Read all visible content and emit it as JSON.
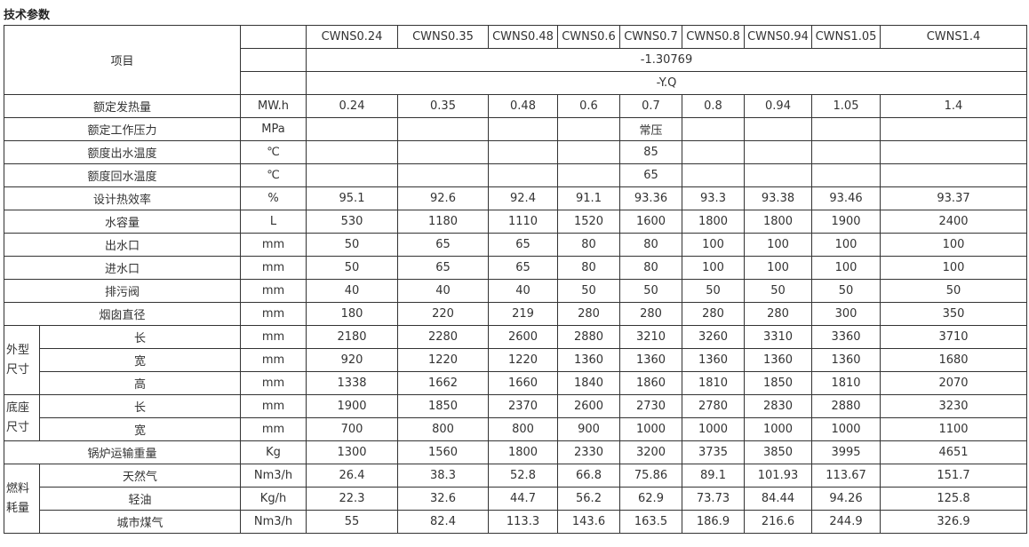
{
  "title": "技术参数",
  "header": {
    "item_label": "项目",
    "models": [
      "CWNS0.24",
      "CWNS0.35",
      "CWNS0.48",
      "CWNS0.6",
      "CWNS0.7",
      "CWNS0.8",
      "CWNS0.94",
      "CWNS1.05",
      "CWNS1.4"
    ],
    "model_suffix": "-1.30769",
    "fuel_suffix": "-Y.Q"
  },
  "rows": [
    {
      "label": "额定发热量",
      "unit": "MW.h",
      "values": [
        "0.24",
        "0.35",
        "0.48",
        "0.6",
        "0.7",
        "0.8",
        "0.94",
        "1.05",
        "1.4"
      ]
    },
    {
      "label": "额定工作压力",
      "unit": "MPa",
      "values": [
        "",
        "",
        "",
        "",
        "常压",
        "",
        "",
        "",
        ""
      ]
    },
    {
      "label": "额度出水温度",
      "unit": "℃",
      "values": [
        "",
        "",
        "",
        "",
        "85",
        "",
        "",
        "",
        ""
      ]
    },
    {
      "label": "额度回水温度",
      "unit": "℃",
      "values": [
        "",
        "",
        "",
        "",
        "65",
        "",
        "",
        "",
        ""
      ]
    },
    {
      "label": "设计热效率",
      "unit": "%",
      "values": [
        "95.1",
        "92.6",
        "92.4",
        "91.1",
        "93.36",
        "93.3",
        "93.38",
        "93.46",
        "93.37"
      ]
    },
    {
      "label": "水容量",
      "unit": "L",
      "values": [
        "530",
        "1180",
        "1110",
        "1520",
        "1600",
        "1800",
        "1800",
        "1900",
        "2400"
      ]
    },
    {
      "label": "出水口",
      "unit": "mm",
      "values": [
        "50",
        "65",
        "65",
        "80",
        "80",
        "100",
        "100",
        "100",
        "100"
      ]
    },
    {
      "label": "进水口",
      "unit": "mm",
      "values": [
        "50",
        "65",
        "65",
        "80",
        "80",
        "100",
        "100",
        "100",
        "100"
      ]
    },
    {
      "label": "排污阀",
      "unit": "mm",
      "values": [
        "40",
        "40",
        "40",
        "50",
        "50",
        "50",
        "50",
        "50",
        "50"
      ]
    },
    {
      "label": "烟囱直径",
      "unit": "mm",
      "values": [
        "180",
        "220",
        "219",
        "280",
        "280",
        "280",
        "280",
        "300",
        "350"
      ]
    },
    {
      "group": "外型尺寸",
      "group_span": 3,
      "label": "长",
      "unit": "mm",
      "values": [
        "2180",
        "2280",
        "2600",
        "2880",
        "3210",
        "3260",
        "3310",
        "3360",
        "3710"
      ]
    },
    {
      "label": "宽",
      "unit": "mm",
      "sub": true,
      "values": [
        "920",
        "1220",
        "1220",
        "1360",
        "1360",
        "1360",
        "1360",
        "1360",
        "1680"
      ]
    },
    {
      "label": "高",
      "unit": "mm",
      "sub": true,
      "values": [
        "1338",
        "1662",
        "1660",
        "1840",
        "1860",
        "1810",
        "1850",
        "1810",
        "2070"
      ]
    },
    {
      "group": "底座尺寸",
      "group_span": 2,
      "label": "长",
      "unit": "mm",
      "values": [
        "1900",
        "1850",
        "2370",
        "2600",
        "2730",
        "2780",
        "2830",
        "2880",
        "3230"
      ]
    },
    {
      "label": "宽",
      "unit": "mm",
      "sub": true,
      "values": [
        "700",
        "800",
        "800",
        "900",
        "1000",
        "1000",
        "1000",
        "1000",
        "1100"
      ]
    },
    {
      "label": "锅炉运输重量",
      "unit": "Kg",
      "values": [
        "1300",
        "1560",
        "1800",
        "2330",
        "3200",
        "3735",
        "3850",
        "3995",
        "4651"
      ]
    },
    {
      "group": "燃料耗量",
      "group_span": 3,
      "label": "天然气",
      "unit": "Nm3/h",
      "values": [
        "26.4",
        "38.3",
        "52.8",
        "66.8",
        "75.86",
        "89.1",
        "101.93",
        "113.67",
        "151.7"
      ]
    },
    {
      "label": "轻油",
      "unit": "Kg/h",
      "sub": true,
      "values": [
        "22.3",
        "32.6",
        "44.7",
        "56.2",
        "62.9",
        "73.73",
        "84.44",
        "94.26",
        "125.8"
      ]
    },
    {
      "label": "城市煤气",
      "unit": "Nm3/h",
      "sub": true,
      "values": [
        "55",
        "82.4",
        "113.3",
        "143.6",
        "163.5",
        "186.9",
        "216.6",
        "244.9",
        "326.9"
      ]
    }
  ]
}
